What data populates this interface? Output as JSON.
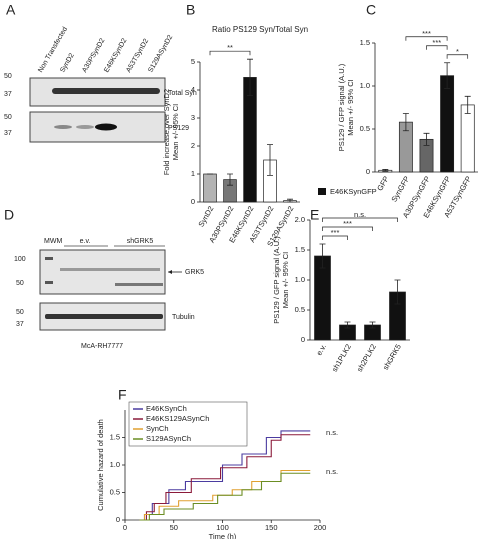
{
  "panel_labels": [
    "A",
    "B",
    "C",
    "D",
    "E",
    "F"
  ],
  "blots": [
    {
      "lanes": [
        "Non Transfected",
        "SynD2",
        "A30PSynD2",
        "E46KSynD2",
        "A53TSynD2",
        "S129ASynD2"
      ],
      "strips": [
        {
          "label": "Total Syn",
          "markers": [
            50,
            37
          ]
        },
        {
          "label": "PS129",
          "markers": [
            50,
            37
          ]
        }
      ]
    },
    {
      "lane_label": "MWM",
      "groups": [
        "e.v.",
        "shGRK5"
      ],
      "strips": [
        {
          "label": "GRK5",
          "markers": [
            100,
            50
          ]
        },
        {
          "label": "Tubulin",
          "markers": [
            50,
            37
          ]
        }
      ],
      "cell_line": "McA-RH7777"
    }
  ],
  "chart_data": [
    {
      "type": "bar",
      "title": "Ratio PS129 Syn/Total Syn",
      "y_label": [
        "Fold increase over SynD2",
        "Mean +/- 95% CI"
      ],
      "categories": [
        "SynD2",
        "A30PSynD2",
        "E46KSynD2",
        "A53TSynD2",
        "S129ASynD2"
      ],
      "values": [
        1.0,
        0.8,
        4.45,
        1.5,
        0.05
      ],
      "errors": [
        0,
        0.2,
        0.65,
        0.55,
        0.05
      ],
      "colors": [
        "#b3b3b3",
        "#777777",
        "#111111",
        "#ffffff",
        "#ffffff"
      ],
      "ylim": [
        0,
        5
      ],
      "yticks": [
        0,
        1,
        2,
        3,
        4,
        5
      ],
      "annotations": [
        {
          "text": "**",
          "between": [
            "SynD2",
            "E46KSynD2"
          ]
        }
      ]
    },
    {
      "type": "bar",
      "y_label": [
        "PS129 / GFP signal (A.U.)",
        "Mean +/- 95% CI"
      ],
      "categories": [
        "GFP",
        "SynGFP",
        "A30PSynGFP",
        "E46KSynGFP",
        "A53TSynGFP"
      ],
      "values": [
        0.02,
        0.58,
        0.38,
        1.12,
        0.78
      ],
      "errors": [
        0.01,
        0.1,
        0.07,
        0.15,
        0.1
      ],
      "colors": [
        "#ffffff",
        "#999999",
        "#666666",
        "#111111",
        "#ffffff"
      ],
      "ylim": [
        0,
        1.5
      ],
      "yticks": [
        0,
        0.5,
        {
          "value": 1,
          "label": "1.0"
        },
        1.5
      ],
      "annotations": [
        {
          "text": "*",
          "between": [
            "E46KSynGFP",
            "A53TSynGFP"
          ]
        },
        {
          "text": "***",
          "between": [
            "A30PSynGFP",
            "E46KSynGFP"
          ]
        },
        {
          "text": "***",
          "between": [
            "SynGFP",
            "E46KSynGFP"
          ]
        }
      ]
    },
    {
      "type": "bar",
      "y_label": [
        "PS129 / GFP signal (A.U.)",
        "Mean +/- 95% CI"
      ],
      "categories": [
        "e.v.",
        "sh1PLK2",
        "sh2PLK2",
        "shGRK5"
      ],
      "series": [
        {
          "name": "E46KSynGFP",
          "color": "#111111",
          "values": [
            1.4,
            0.25,
            0.25,
            0.8
          ],
          "errors": [
            0.2,
            0.05,
            0.05,
            0.2
          ]
        }
      ],
      "ylim": [
        0,
        2
      ],
      "yticks": [
        0,
        0.5,
        {
          "value": 1,
          "label": "1.0"
        },
        1.5,
        {
          "value": 2,
          "label": "2.0"
        }
      ],
      "annotations": [
        {
          "text": "***",
          "between": [
            "e.v.",
            "sh1PLK2"
          ]
        },
        {
          "text": "***",
          "between": [
            "e.v.",
            "sh2PLK2"
          ]
        },
        {
          "text": "n.s.",
          "between": [
            "e.v.",
            "shGRK5"
          ]
        }
      ]
    },
    {
      "type": "line",
      "x_label": "Time (h)",
      "y_label": [
        "Cumulative hazard of death"
      ],
      "xlim": [
        0,
        200
      ],
      "xticks": [
        0,
        50,
        100,
        150,
        200
      ],
      "ylim": [
        0,
        2
      ],
      "yticks": [
        0,
        0.5,
        {
          "value": 1,
          "label": "1.0"
        },
        1.5
      ],
      "series": [
        {
          "name": "E46KSynCh",
          "color": "#4b3ca0",
          "x": [
            15,
            20,
            20,
            28,
            28,
            45,
            45,
            62,
            62,
            100,
            100,
            120,
            120,
            145,
            145,
            160,
            160,
            190
          ],
          "values": [
            0,
            0,
            0.1,
            0.1,
            0.3,
            0.3,
            0.55,
            0.55,
            0.7,
            0.7,
            1.0,
            1.0,
            1.2,
            1.2,
            1.5,
            1.5,
            1.62,
            1.62
          ]
        },
        {
          "name": "E46KS129ASynCh",
          "color": "#8b1a3a",
          "x": [
            15,
            22,
            22,
            30,
            30,
            42,
            42,
            68,
            68,
            98,
            98,
            125,
            125,
            150,
            150,
            160,
            160,
            190
          ],
          "values": [
            0,
            0,
            0.15,
            0.15,
            0.3,
            0.3,
            0.5,
            0.5,
            0.75,
            0.75,
            0.95,
            0.95,
            1.15,
            1.15,
            1.45,
            1.45,
            1.55,
            1.55
          ]
        },
        {
          "name": "SynCh",
          "color": "#e0a030",
          "x": [
            15,
            20,
            20,
            35,
            35,
            55,
            55,
            90,
            90,
            110,
            110,
            130,
            130,
            160,
            160,
            190
          ],
          "values": [
            0,
            0,
            0.1,
            0.1,
            0.25,
            0.25,
            0.35,
            0.35,
            0.45,
            0.45,
            0.55,
            0.55,
            0.7,
            0.7,
            0.9,
            0.9
          ]
        },
        {
          "name": "S129ASynCh",
          "color": "#6b8e23",
          "x": [
            15,
            25,
            25,
            40,
            40,
            70,
            70,
            95,
            95,
            120,
            120,
            140,
            140,
            160,
            160,
            190
          ],
          "values": [
            0,
            0,
            0.1,
            0.1,
            0.2,
            0.2,
            0.3,
            0.3,
            0.45,
            0.45,
            0.55,
            0.55,
            0.7,
            0.7,
            0.85,
            0.85
          ]
        }
      ],
      "annotations": [
        "n.s.",
        "n.s."
      ]
    }
  ]
}
